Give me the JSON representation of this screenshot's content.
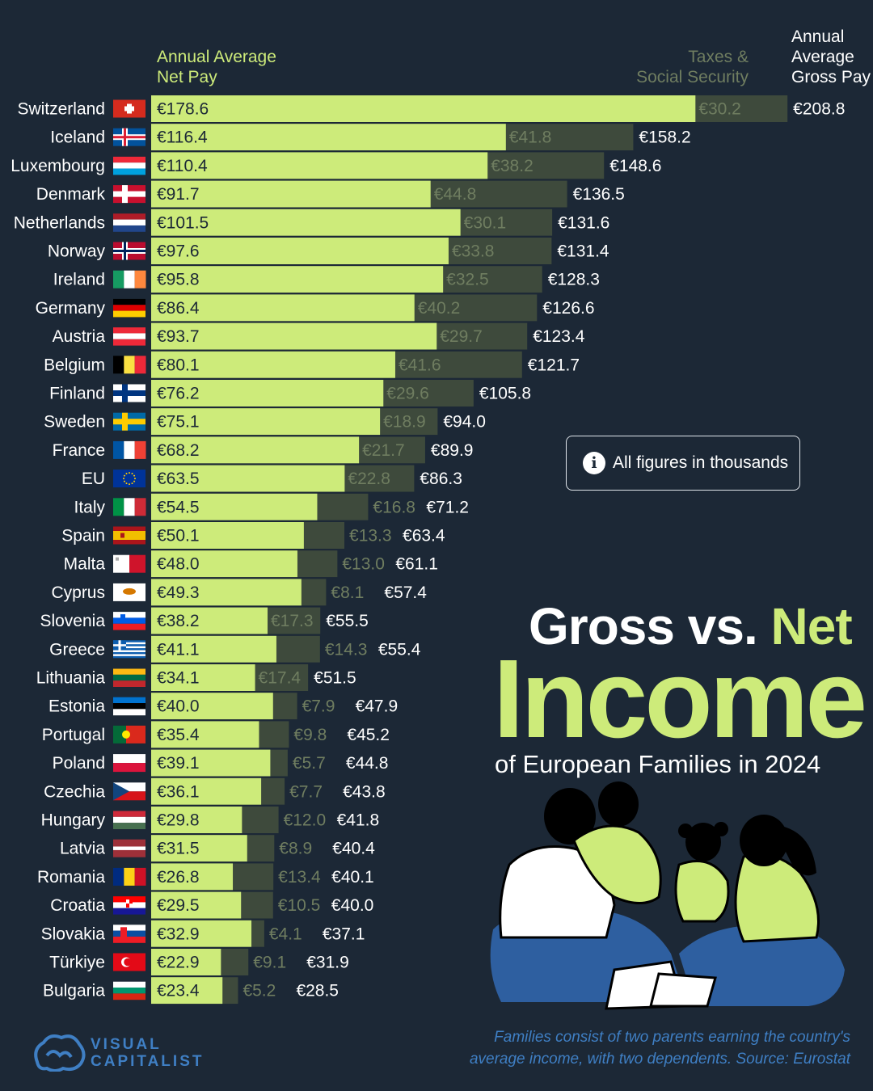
{
  "headers": {
    "net_line1": "Annual Average",
    "net_line2": "Net Pay",
    "tax_line1": "Taxes &",
    "tax_line2": "Social Security",
    "gross_line1": "Annual",
    "gross_line2": "Average",
    "gross_line3": "Gross Pay"
  },
  "info": {
    "text": "All figures in thousands",
    "icon": "info-icon"
  },
  "title": {
    "part1": "Gross vs.",
    "part2": "Net",
    "line2": "Income",
    "line3": "of European Families in 2024"
  },
  "footnote": {
    "line1": "Families consist of two parents earning the country's",
    "line2": "average income, with two dependents. Source: Eurostat"
  },
  "logo": {
    "line1": "VISUAL",
    "line2": "CAPITALIST"
  },
  "colors": {
    "background": "#1c2836",
    "net": "#cdeb7a",
    "tax": "#3e4a3c",
    "tax_text": "#6f7d60",
    "source": "#3f7fc4"
  },
  "chart_data": {
    "type": "bar",
    "orientation": "horizontal",
    "stacked": true,
    "currency_prefix": "€",
    "series": [
      {
        "name": "Annual Average Net Pay",
        "key": "net"
      },
      {
        "name": "Taxes & Social Security",
        "key": "tax"
      },
      {
        "name": "Annual Average Gross Pay",
        "key": "gross"
      }
    ],
    "rows": [
      {
        "country": "Switzerland",
        "flag": "switzerland-flag",
        "net": 178.6,
        "tax": 30.2,
        "gross": 208.8
      },
      {
        "country": "Iceland",
        "flag": "iceland-flag",
        "net": 116.4,
        "tax": 41.8,
        "gross": 158.2
      },
      {
        "country": "Luxembourg",
        "flag": "luxembourg-flag",
        "net": 110.4,
        "tax": 38.2,
        "gross": 148.6
      },
      {
        "country": "Denmark",
        "flag": "denmark-flag",
        "net": 91.7,
        "tax": 44.8,
        "gross": 136.5
      },
      {
        "country": "Netherlands",
        "flag": "netherlands-flag",
        "net": 101.5,
        "tax": 30.1,
        "gross": 131.6
      },
      {
        "country": "Norway",
        "flag": "norway-flag",
        "net": 97.6,
        "tax": 33.8,
        "gross": 131.4
      },
      {
        "country": "Ireland",
        "flag": "ireland-flag",
        "net": 95.8,
        "tax": 32.5,
        "gross": 128.3
      },
      {
        "country": "Germany",
        "flag": "germany-flag",
        "net": 86.4,
        "tax": 40.2,
        "gross": 126.6
      },
      {
        "country": "Austria",
        "flag": "austria-flag",
        "net": 93.7,
        "tax": 29.7,
        "gross": 123.4
      },
      {
        "country": "Belgium",
        "flag": "belgium-flag",
        "net": 80.1,
        "tax": 41.6,
        "gross": 121.7
      },
      {
        "country": "Finland",
        "flag": "finland-flag",
        "net": 76.2,
        "tax": 29.6,
        "gross": 105.8
      },
      {
        "country": "Sweden",
        "flag": "sweden-flag",
        "net": 75.1,
        "tax": 18.9,
        "gross": 94.0
      },
      {
        "country": "France",
        "flag": "france-flag",
        "net": 68.2,
        "tax": 21.7,
        "gross": 89.9
      },
      {
        "country": "EU",
        "flag": "eu-flag",
        "net": 63.5,
        "tax": 22.8,
        "gross": 86.3
      },
      {
        "country": "Italy",
        "flag": "italy-flag",
        "net": 54.5,
        "tax": 16.8,
        "gross": 71.2
      },
      {
        "country": "Spain",
        "flag": "spain-flag",
        "net": 50.1,
        "tax": 13.3,
        "gross": 63.4
      },
      {
        "country": "Malta",
        "flag": "malta-flag",
        "net": 48.0,
        "tax": 13.0,
        "gross": 61.1
      },
      {
        "country": "Cyprus",
        "flag": "cyprus-flag",
        "net": 49.3,
        "tax": 8.1,
        "gross": 57.4
      },
      {
        "country": "Slovenia",
        "flag": "slovenia-flag",
        "net": 38.2,
        "tax": 17.3,
        "gross": 55.5
      },
      {
        "country": "Greece",
        "flag": "greece-flag",
        "net": 41.1,
        "tax": 14.3,
        "gross": 55.4
      },
      {
        "country": "Lithuania",
        "flag": "lithuania-flag",
        "net": 34.1,
        "tax": 17.4,
        "gross": 51.5
      },
      {
        "country": "Estonia",
        "flag": "estonia-flag",
        "net": 40.0,
        "tax": 7.9,
        "gross": 47.9
      },
      {
        "country": "Portugal",
        "flag": "portugal-flag",
        "net": 35.4,
        "tax": 9.8,
        "gross": 45.2
      },
      {
        "country": "Poland",
        "flag": "poland-flag",
        "net": 39.1,
        "tax": 5.7,
        "gross": 44.8
      },
      {
        "country": "Czechia",
        "flag": "czechia-flag",
        "net": 36.1,
        "tax": 7.7,
        "gross": 43.8
      },
      {
        "country": "Hungary",
        "flag": "hungary-flag",
        "net": 29.8,
        "tax": 12.0,
        "gross": 41.8
      },
      {
        "country": "Latvia",
        "flag": "latvia-flag",
        "net": 31.5,
        "tax": 8.9,
        "gross": 40.4
      },
      {
        "country": "Romania",
        "flag": "romania-flag",
        "net": 26.8,
        "tax": 13.4,
        "gross": 40.1
      },
      {
        "country": "Croatia",
        "flag": "croatia-flag",
        "net": 29.5,
        "tax": 10.5,
        "gross": 40.0
      },
      {
        "country": "Slovakia",
        "flag": "slovakia-flag",
        "net": 32.9,
        "tax": 4.1,
        "gross": 37.1
      },
      {
        "country": "Türkiye",
        "flag": "turkiye-flag",
        "net": 22.9,
        "tax": 9.1,
        "gross": 31.9
      },
      {
        "country": "Bulgaria",
        "flag": "bulgaria-flag",
        "net": 23.4,
        "tax": 5.2,
        "gross": 28.5
      }
    ]
  }
}
